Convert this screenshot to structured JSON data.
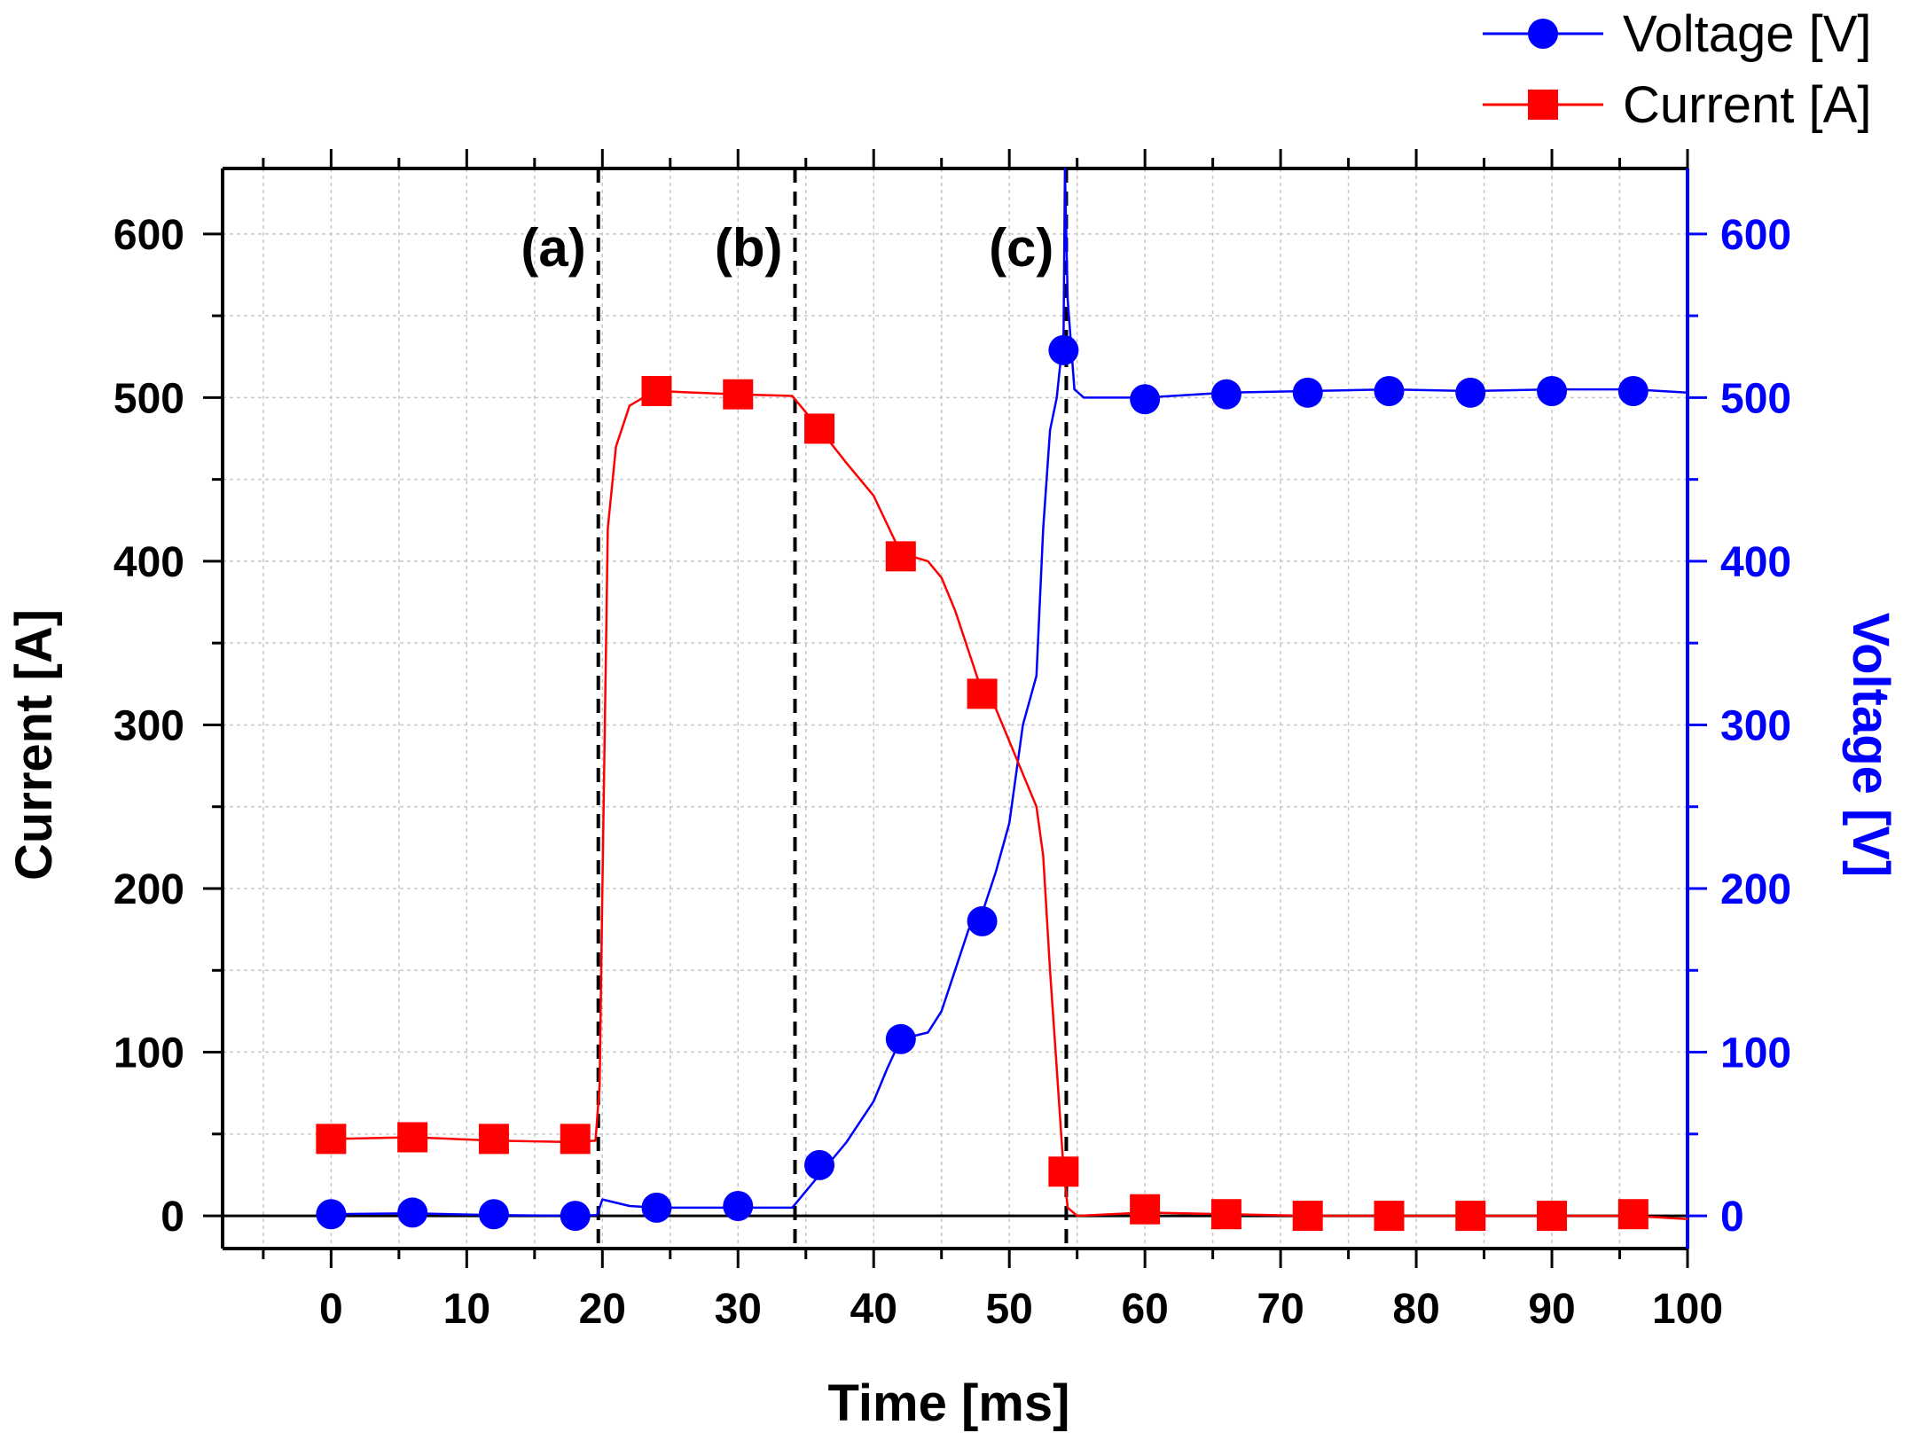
{
  "chart_data": {
    "type": "line",
    "xlabel": "Time [ms]",
    "ylabel_left": "Current [A]",
    "ylabel_right": "Voltage [V]",
    "xlim": [
      -8,
      100
    ],
    "ylim_left": [
      -20,
      640
    ],
    "ylim_right": [
      -20,
      640
    ],
    "x_ticks": [
      0,
      10,
      20,
      30,
      40,
      50,
      60,
      70,
      80,
      90,
      100
    ],
    "y_ticks": [
      0,
      100,
      200,
      300,
      400,
      500,
      600
    ],
    "grid": true,
    "legend_position": "top-right",
    "colors": {
      "voltage": "#0000ff",
      "current": "#ff0000",
      "axis": "#000000",
      "right_axis": "#0000ff"
    },
    "annotations": [
      {
        "label": "(a)",
        "x": 19.7
      },
      {
        "label": "(b)",
        "x": 34.2
      },
      {
        "label": "(c)",
        "x": 54.2
      }
    ],
    "series": [
      {
        "name": "Voltage [V]",
        "axis": "right",
        "marker": "circle",
        "line": [
          [
            0,
            1
          ],
          [
            6,
            1.5
          ],
          [
            12,
            0.5
          ],
          [
            18,
            0
          ],
          [
            19.6,
            0.5
          ],
          [
            20,
            10
          ],
          [
            22,
            6
          ],
          [
            24,
            5
          ],
          [
            30,
            5
          ],
          [
            34,
            5
          ],
          [
            35,
            15
          ],
          [
            36,
            25
          ],
          [
            38,
            45
          ],
          [
            40,
            70
          ],
          [
            41,
            90
          ],
          [
            42,
            108
          ],
          [
            44,
            112
          ],
          [
            45,
            125
          ],
          [
            46,
            150
          ],
          [
            47,
            175
          ],
          [
            48,
            185
          ],
          [
            49,
            210
          ],
          [
            50,
            240
          ],
          [
            51,
            300
          ],
          [
            52,
            330
          ],
          [
            52.5,
            420
          ],
          [
            53,
            480
          ],
          [
            53.5,
            500
          ],
          [
            54,
            540
          ],
          [
            54.1,
            640
          ],
          [
            54.3,
            560
          ],
          [
            54.8,
            505
          ],
          [
            55.5,
            500
          ],
          [
            60,
            500
          ],
          [
            66,
            503
          ],
          [
            72,
            504
          ],
          [
            78,
            505
          ],
          [
            84,
            504
          ],
          [
            90,
            505
          ],
          [
            96,
            505
          ],
          [
            100,
            503
          ]
        ],
        "markers": [
          [
            0,
            1
          ],
          [
            6,
            2
          ],
          [
            12,
            1
          ],
          [
            18,
            0
          ],
          [
            24,
            5
          ],
          [
            30,
            6
          ],
          [
            36,
            31
          ],
          [
            42,
            108
          ],
          [
            48,
            180
          ],
          [
            54,
            529
          ],
          [
            60,
            499
          ],
          [
            66,
            502
          ],
          [
            72,
            503
          ],
          [
            78,
            504
          ],
          [
            84,
            503
          ],
          [
            90,
            504
          ],
          [
            96,
            504
          ]
        ]
      },
      {
        "name": "Current [A]",
        "axis": "left",
        "marker": "square",
        "line": [
          [
            0,
            47
          ],
          [
            6,
            48
          ],
          [
            12,
            46
          ],
          [
            18,
            45
          ],
          [
            19.5,
            46
          ],
          [
            19.8,
            80
          ],
          [
            20,
            200
          ],
          [
            20.4,
            420
          ],
          [
            21,
            470
          ],
          [
            22,
            495
          ],
          [
            23,
            500
          ],
          [
            24,
            504
          ],
          [
            30,
            502
          ],
          [
            34,
            501
          ],
          [
            36,
            481
          ],
          [
            38,
            460
          ],
          [
            40,
            440
          ],
          [
            42,
            405
          ],
          [
            44,
            400
          ],
          [
            45,
            390
          ],
          [
            46,
            370
          ],
          [
            47,
            345
          ],
          [
            48,
            320
          ],
          [
            49,
            310
          ],
          [
            50,
            290
          ],
          [
            51,
            270
          ],
          [
            52,
            250
          ],
          [
            52.5,
            220
          ],
          [
            53,
            150
          ],
          [
            53.5,
            90
          ],
          [
            54,
            28
          ],
          [
            54.3,
            5
          ],
          [
            55,
            0
          ],
          [
            60,
            2
          ],
          [
            66,
            1
          ],
          [
            72,
            0
          ],
          [
            78,
            0
          ],
          [
            84,
            0
          ],
          [
            90,
            0
          ],
          [
            96,
            0
          ],
          [
            100,
            -2
          ]
        ],
        "markers": [
          [
            0,
            47
          ],
          [
            6,
            48
          ],
          [
            12,
            47
          ],
          [
            18,
            47
          ],
          [
            24,
            504
          ],
          [
            30,
            502
          ],
          [
            36,
            481
          ],
          [
            42,
            403
          ],
          [
            48,
            319
          ],
          [
            54,
            27
          ],
          [
            60,
            4
          ],
          [
            66,
            1
          ],
          [
            72,
            0
          ],
          [
            78,
            0
          ],
          [
            84,
            0
          ],
          [
            90,
            0
          ],
          [
            96,
            1
          ]
        ]
      }
    ]
  }
}
